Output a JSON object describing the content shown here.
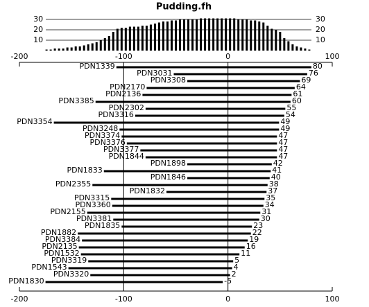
{
  "chart_data": {
    "type": "range-bar",
    "title": "Pudding.fh",
    "xlim": [
      -200,
      100
    ],
    "xticks": [
      -200,
      -100,
      0,
      100
    ],
    "categories": [
      "PDN1339",
      "PDN3031",
      "PDN3308",
      "PDN2170",
      "PDN2136",
      "PDN3385",
      "PDN2302",
      "PDN3316",
      "PDN3354",
      "PDN3248",
      "PDN3374",
      "PDN3376",
      "PDN3377",
      "PDN1844",
      "PDN1898",
      "PDN1833",
      "PDN1846",
      "PDN2355",
      "PDN1832",
      "PDN3315",
      "PDN3360",
      "PDN2155",
      "PDN3381",
      "PDN1835",
      "PDN1882",
      "PDN3384",
      "PDN2135",
      "PDN1532",
      "PDN3319",
      "PDN1543",
      "PDN3320",
      "PDN1830"
    ],
    "starts": [
      -107,
      -52,
      -39,
      -78,
      -82,
      -127,
      -79,
      -89,
      -167,
      -104,
      -102,
      -97,
      -84,
      -79,
      -39,
      -119,
      -39,
      -130,
      -59,
      -112,
      -111,
      -135,
      -110,
      -102,
      -144,
      -140,
      -143,
      -141,
      -134,
      -153,
      -132,
      -175
    ],
    "values": [
      80,
      76,
      69,
      64,
      61,
      60,
      55,
      54,
      49,
      49,
      47,
      47,
      47,
      47,
      42,
      41,
      40,
      38,
      37,
      35,
      34,
      31,
      30,
      23,
      22,
      19,
      16,
      11,
      5,
      4,
      2,
      -5
    ],
    "color": "#000000",
    "histogram": {
      "type": "histogram",
      "bins": [
        -176,
        -172,
        -168,
        -164,
        -160,
        -156,
        -152,
        -148,
        -144,
        -140,
        -136,
        -132,
        -128,
        -124,
        -120,
        -116,
        -112,
        -108,
        -104,
        -100,
        -96,
        -92,
        -88,
        -84,
        -80,
        -76,
        -72,
        -68,
        -64,
        -60,
        -56,
        -52,
        -48,
        -44,
        -40,
        -36,
        -32,
        -28,
        -24,
        -20,
        -16,
        -12,
        -8,
        -4,
        0,
        4,
        8,
        12,
        16,
        20,
        24,
        28,
        32,
        36,
        40,
        44,
        48,
        52,
        56,
        60,
        64,
        68,
        72,
        76,
        80
      ],
      "values": [
        1,
        1,
        2,
        2,
        2,
        3,
        3,
        4,
        4,
        5,
        6,
        7,
        8,
        10,
        12,
        14,
        18,
        21,
        22,
        22,
        23,
        23,
        23,
        24,
        24,
        25,
        26,
        27,
        28,
        28,
        29,
        29,
        30,
        30,
        30,
        30,
        30,
        31,
        31,
        31,
        31,
        31,
        31,
        31,
        31,
        31,
        30,
        30,
        30,
        29,
        29,
        28,
        27,
        24,
        21,
        20,
        18,
        12,
        9,
        6,
        4,
        3,
        2,
        1
      ],
      "ylim": [
        0,
        30
      ],
      "yticks": [
        10,
        20,
        30
      ],
      "grid": true,
      "color": "#000000"
    }
  }
}
